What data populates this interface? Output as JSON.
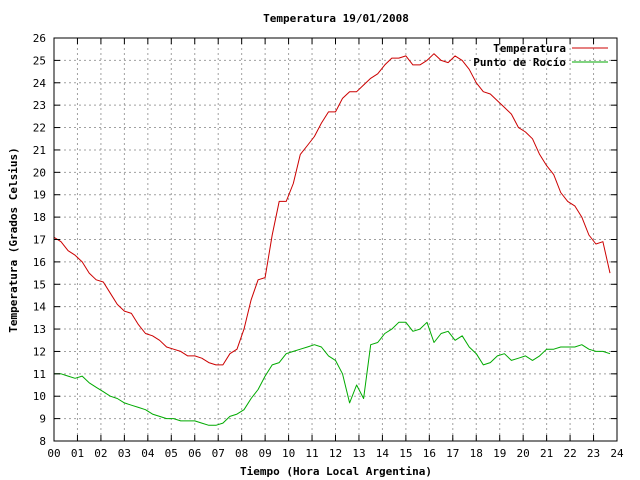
{
  "chart_data": {
    "type": "line",
    "title": "Temperatura 19/01/2008",
    "xlabel": "Tiempo (Hora Local Argentina)",
    "ylabel": "Temperatura (Grados Celsius)",
    "xlim": [
      0,
      24
    ],
    "ylim": [
      8,
      26
    ],
    "x_ticks": [
      "00",
      "01",
      "02",
      "03",
      "04",
      "05",
      "06",
      "07",
      "08",
      "09",
      "10",
      "11",
      "12",
      "13",
      "14",
      "15",
      "16",
      "17",
      "18",
      "19",
      "20",
      "21",
      "22",
      "23",
      "24"
    ],
    "y_ticks": [
      "8",
      "9",
      "10",
      "11",
      "12",
      "13",
      "14",
      "15",
      "16",
      "17",
      "18",
      "19",
      "20",
      "21",
      "22",
      "23",
      "24",
      "25",
      "26"
    ],
    "grid": true,
    "legend_position": "top-right",
    "series": [
      {
        "name": "Temperatura",
        "color": "#cc0000",
        "x": [
          0,
          0.3,
          0.6,
          0.9,
          1.2,
          1.5,
          1.8,
          2.1,
          2.4,
          2.7,
          3.0,
          3.3,
          3.6,
          3.9,
          4.2,
          4.5,
          4.8,
          5.1,
          5.4,
          5.7,
          6.0,
          6.3,
          6.6,
          6.9,
          7.2,
          7.5,
          7.8,
          8.1,
          8.4,
          8.7,
          9.0,
          9.3,
          9.6,
          9.9,
          10.2,
          10.5,
          10.8,
          11.1,
          11.4,
          11.7,
          12.0,
          12.3,
          12.6,
          12.9,
          13.2,
          13.5,
          13.8,
          14.1,
          14.4,
          14.7,
          15.0,
          15.3,
          15.6,
          15.9,
          16.2,
          16.5,
          16.8,
          17.1,
          17.4,
          17.7,
          18.0,
          18.3,
          18.6,
          18.9,
          19.2,
          19.5,
          19.8,
          20.1,
          20.4,
          20.7,
          21.0,
          21.3,
          21.6,
          21.9,
          22.2,
          22.5,
          22.8,
          23.1,
          23.4,
          23.7
        ],
        "values": [
          17.1,
          16.9,
          16.5,
          16.3,
          16.0,
          15.5,
          15.2,
          15.1,
          14.6,
          14.1,
          13.8,
          13.7,
          13.2,
          12.8,
          12.7,
          12.5,
          12.2,
          12.1,
          12.0,
          11.8,
          11.8,
          11.7,
          11.5,
          11.4,
          11.4,
          11.9,
          12.1,
          13.0,
          14.3,
          15.2,
          15.3,
          17.2,
          18.7,
          18.7,
          19.5,
          20.8,
          21.2,
          21.6,
          22.2,
          22.7,
          22.7,
          23.3,
          23.6,
          23.6,
          23.9,
          24.2,
          24.4,
          24.8,
          25.1,
          25.1,
          25.2,
          24.8,
          24.8,
          25.0,
          25.3,
          25.0,
          24.9,
          25.2,
          25.0,
          24.6,
          24.0,
          23.6,
          23.5,
          23.2,
          22.9,
          22.6,
          22.0,
          21.8,
          21.5,
          20.8,
          20.3,
          19.9,
          19.1,
          18.7,
          18.5,
          18.0,
          17.2,
          16.8,
          16.9,
          15.5
        ]
      },
      {
        "name": "Punto de Rocío",
        "color": "#00aa00",
        "x": [
          0,
          0.3,
          0.6,
          0.9,
          1.2,
          1.5,
          1.8,
          2.1,
          2.4,
          2.7,
          3.0,
          3.3,
          3.6,
          3.9,
          4.2,
          4.5,
          4.8,
          5.1,
          5.4,
          5.7,
          6.0,
          6.3,
          6.6,
          6.9,
          7.2,
          7.5,
          7.8,
          8.1,
          8.4,
          8.7,
          9.0,
          9.3,
          9.6,
          9.9,
          10.2,
          10.5,
          10.8,
          11.1,
          11.4,
          11.7,
          12.0,
          12.3,
          12.6,
          12.9,
          13.2,
          13.5,
          13.8,
          14.1,
          14.4,
          14.7,
          15.0,
          15.3,
          15.6,
          15.9,
          16.2,
          16.5,
          16.8,
          17.1,
          17.4,
          17.7,
          18.0,
          18.3,
          18.6,
          18.9,
          19.2,
          19.5,
          19.8,
          20.1,
          20.4,
          20.7,
          21.0,
          21.3,
          21.6,
          21.9,
          22.2,
          22.5,
          22.8,
          23.1,
          23.4,
          23.7
        ],
        "values": [
          11.0,
          11.0,
          10.9,
          10.8,
          10.9,
          10.6,
          10.4,
          10.2,
          10.0,
          9.9,
          9.7,
          9.6,
          9.5,
          9.4,
          9.2,
          9.1,
          9.0,
          9.0,
          8.9,
          8.9,
          8.9,
          8.8,
          8.7,
          8.7,
          8.8,
          9.1,
          9.2,
          9.4,
          9.9,
          10.3,
          10.9,
          11.4,
          11.5,
          11.9,
          12.0,
          12.1,
          12.2,
          12.3,
          12.2,
          11.8,
          11.6,
          11.0,
          9.7,
          10.5,
          9.9,
          12.3,
          12.4,
          12.8,
          13.0,
          13.3,
          13.3,
          12.9,
          13.0,
          13.3,
          12.4,
          12.8,
          12.9,
          12.5,
          12.7,
          12.2,
          11.9,
          11.4,
          11.5,
          11.8,
          11.9,
          11.6,
          11.7,
          11.8,
          11.6,
          11.8,
          12.1,
          12.1,
          12.2,
          12.2,
          12.2,
          12.3,
          12.1,
          12.0,
          12.0,
          11.9
        ]
      }
    ]
  }
}
